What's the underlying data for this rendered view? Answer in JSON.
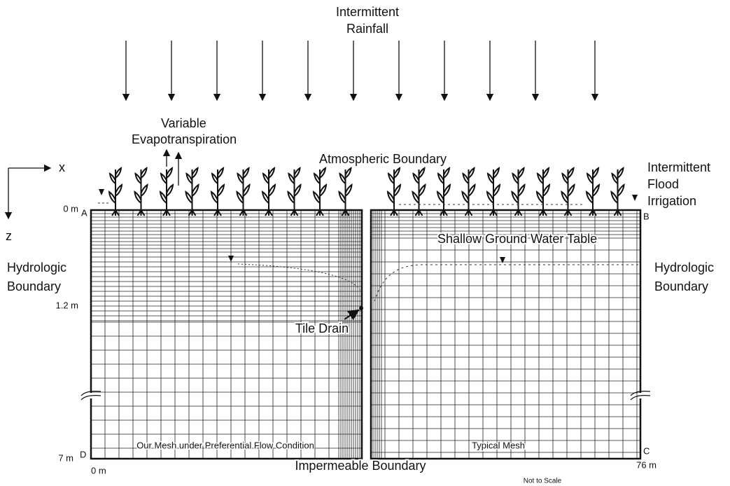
{
  "labels": {
    "rainfall": [
      "Intermittent",
      "Rainfall"
    ],
    "evapotranspiration": [
      "Variable",
      "Evapotranspiration"
    ],
    "atmospheric_boundary": "Atmospheric Boundary",
    "flood_irrigation": [
      "Intermittent",
      "Flood",
      "Irrigation"
    ],
    "hydrologic_boundary_left": [
      "Hydrologic",
      "Boundary"
    ],
    "hydrologic_boundary_right": [
      "Hydrologic",
      "Boundary"
    ],
    "water_table": "Shallow Ground Water Table",
    "tile_drain": "Tile Drain",
    "impermeable_boundary": "Impermeable Boundary",
    "not_to_scale": "Not to Scale"
  },
  "axes": {
    "x": "x",
    "z": "z"
  },
  "depth_labels": [
    "0 m",
    "1.2 m",
    "7 m"
  ],
  "width_labels": [
    "0 m",
    "76 m"
  ],
  "corners": {
    "a": "A",
    "b": "B",
    "c": "C",
    "d": "D"
  },
  "meshes": [
    "Our Mesh under Preferential Flow Condition",
    "Typical Mesh"
  ]
}
